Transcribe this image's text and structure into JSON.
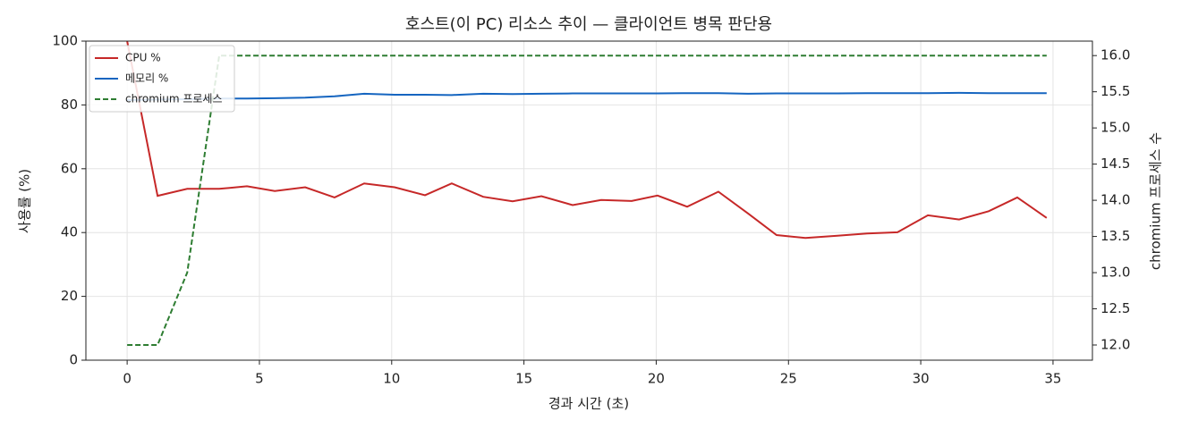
{
  "chart_data": {
    "type": "line",
    "title": "호스트(이 PC) 리소스 추이 — 클라이언트 병목 판단용",
    "x_label": "경과 시간 (초)",
    "y_label": "사용률 (%)",
    "y2_label": "chromium 프로세스 수",
    "x": [
      0,
      1.15,
      2.27,
      3.48,
      4.53,
      5.58,
      6.73,
      7.84,
      8.96,
      10.11,
      11.26,
      12.27,
      13.46,
      14.57,
      15.66,
      16.84,
      17.92,
      19.07,
      20.05,
      21.17,
      22.35,
      23.47,
      24.55,
      25.64,
      26.85,
      27.97,
      29.12,
      30.27,
      31.45,
      32.57,
      33.65,
      34.76
    ],
    "series": [
      {
        "name": "CPU %",
        "color": "#c62828",
        "axis": "y",
        "linestyle": "solid",
        "values": [
          100,
          51.5,
          53.7,
          53.7,
          54.5,
          53,
          54.2,
          51,
          55.4,
          54.2,
          51.7,
          55.4,
          51.2,
          49.8,
          51.4,
          48.6,
          50.2,
          49.9,
          51.6,
          48.1,
          52.8,
          46,
          39.2,
          38.3,
          39,
          39.7,
          40.1,
          45.4,
          44.1,
          46.7,
          51,
          44.6
        ]
      },
      {
        "name": "메모리 %",
        "color": "#1565c0",
        "axis": "y",
        "linestyle": "solid",
        "values": [
          81.5,
          81.7,
          81.8,
          82,
          82,
          82.1,
          82.3,
          82.7,
          83.5,
          83.2,
          83.2,
          83.1,
          83.5,
          83.4,
          83.5,
          83.6,
          83.6,
          83.6,
          83.6,
          83.7,
          83.7,
          83.5,
          83.6,
          83.6,
          83.6,
          83.7,
          83.7,
          83.7,
          83.8,
          83.7,
          83.7,
          83.7
        ]
      },
      {
        "name": "chromium 프로세스",
        "color": "#2e7d32",
        "axis": "y2",
        "linestyle": "dashed",
        "values": [
          12,
          12,
          13,
          16,
          16,
          16,
          16,
          16,
          16,
          16,
          16,
          16,
          16,
          16,
          16,
          16,
          16,
          16,
          16,
          16,
          16,
          16,
          16,
          16,
          16,
          16,
          16,
          16,
          16,
          16,
          16,
          16
        ]
      }
    ],
    "xlim": [
      -1.56,
      36.49
    ],
    "xticks": [
      0,
      5,
      10,
      15,
      20,
      25,
      30,
      35
    ],
    "ylim": [
      0,
      100
    ],
    "yticks": [
      0,
      20,
      40,
      60,
      80,
      100
    ],
    "y2lim": [
      11.79,
      16.2
    ],
    "y2ticks": [
      {
        "value": 12,
        "label": "12.0"
      },
      {
        "value": 12.5,
        "label": "12.5"
      },
      {
        "value": 13,
        "label": "13.0"
      },
      {
        "value": 13.5,
        "label": "13.5"
      },
      {
        "value": 14,
        "label": "14.0"
      },
      {
        "value": 14.5,
        "label": "14.5"
      },
      {
        "value": 15,
        "label": "15.0"
      },
      {
        "value": 15.5,
        "label": "15.5"
      },
      {
        "value": 16,
        "label": "16.0"
      }
    ],
    "grid": true,
    "legend": "upper-left"
  }
}
